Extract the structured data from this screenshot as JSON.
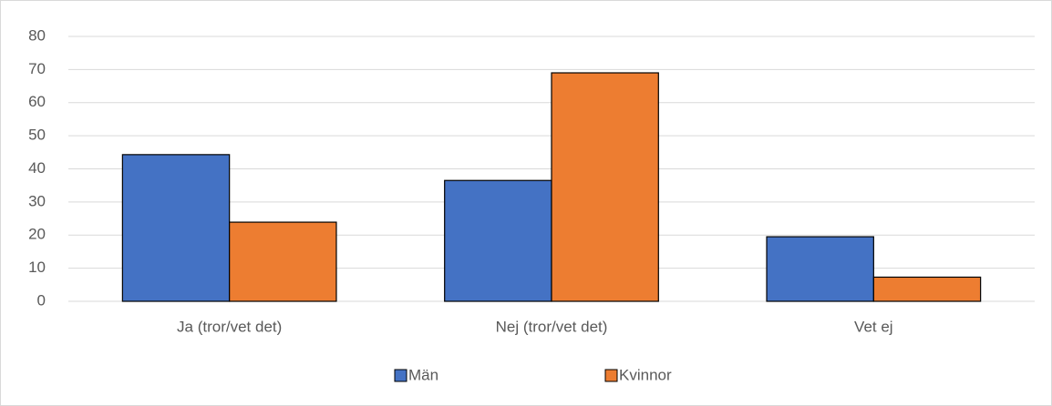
{
  "chart_data": {
    "type": "bar",
    "categories": [
      "Ja (tror/vet det)",
      "Nej (tror/vet det)",
      "Vet ej"
    ],
    "series": [
      {
        "name": "Män",
        "color": "#4472c4",
        "values": [
          44.3,
          36.5,
          19.5
        ]
      },
      {
        "name": "Kvinnor",
        "color": "#ed7d31",
        "values": [
          23.9,
          69.0,
          7.3
        ]
      }
    ],
    "ylim": [
      0,
      80
    ],
    "yticks": [
      0,
      10,
      20,
      30,
      40,
      50,
      60,
      70,
      80
    ],
    "grid": true,
    "legend": "bottom"
  }
}
